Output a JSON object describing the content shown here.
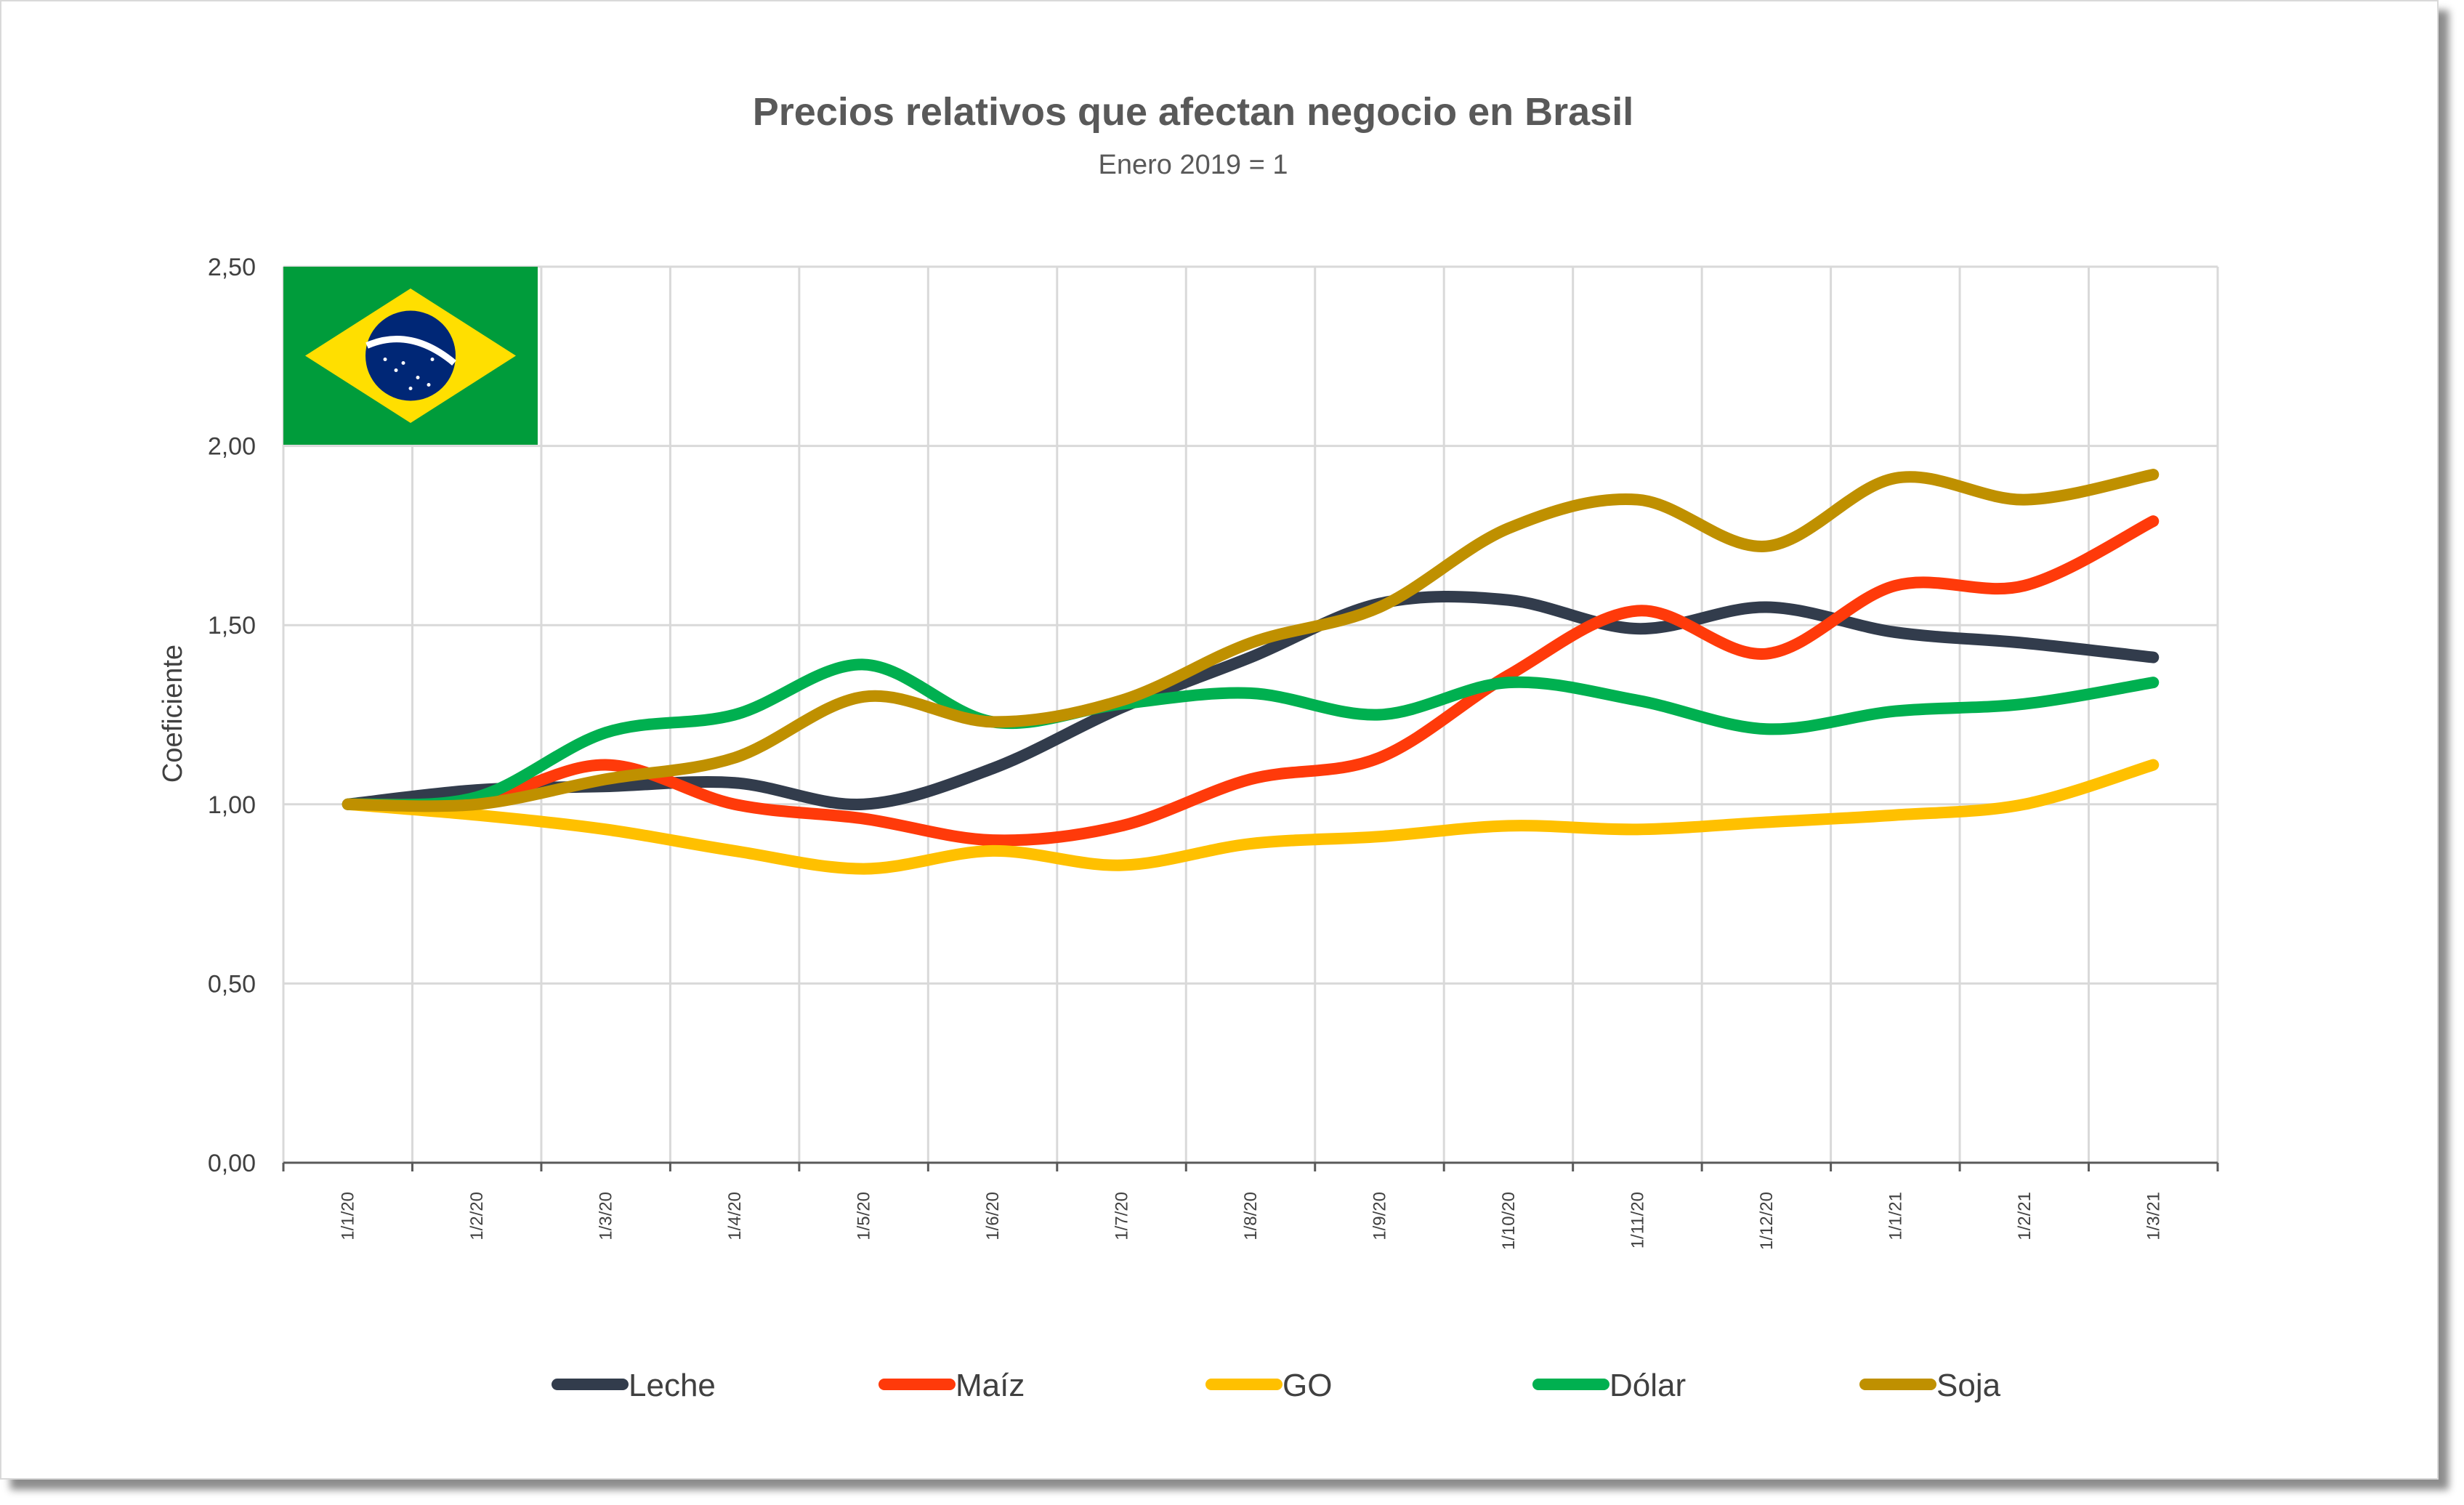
{
  "chart_data": {
    "type": "line",
    "title": "Precios relativos que afectan negocio en Brasil",
    "subtitle": "Enero 2019 = 1",
    "ylabel": "Coeficiente",
    "xlabel": "",
    "ylim": [
      0,
      2.5
    ],
    "yticks": [
      "0,00",
      "0,50",
      "1,00",
      "1,50",
      "2,00",
      "2,50"
    ],
    "ytick_values": [
      0,
      0.5,
      1.0,
      1.5,
      2.0,
      2.5
    ],
    "x": [
      "1/1/20",
      "1/2/20",
      "1/3/20",
      "1/4/20",
      "1/5/20",
      "1/6/20",
      "1/7/20",
      "1/8/20",
      "1/9/20",
      "1/10/20",
      "1/11/20",
      "1/12/20",
      "1/1/21",
      "1/2/21",
      "1/3/21"
    ],
    "grid": true,
    "legend_position": "bottom",
    "series": [
      {
        "name": "Leche",
        "color": "#323c4c",
        "values": [
          1.0,
          1.04,
          1.05,
          1.06,
          1.0,
          1.1,
          1.27,
          1.41,
          1.56,
          1.57,
          1.49,
          1.55,
          1.48,
          1.45,
          1.41
        ]
      },
      {
        "name": "Maíz",
        "color": "#ff3a0a",
        "values": [
          1.0,
          1.01,
          1.11,
          1.0,
          0.96,
          0.9,
          0.94,
          1.07,
          1.13,
          1.36,
          1.54,
          1.42,
          1.61,
          1.61,
          1.79
        ]
      },
      {
        "name": "GO",
        "color": "#ffc000",
        "values": [
          1.0,
          0.97,
          0.93,
          0.87,
          0.82,
          0.87,
          0.83,
          0.89,
          0.91,
          0.94,
          0.93,
          0.95,
          0.97,
          1.0,
          1.11
        ]
      },
      {
        "name": "Dólar",
        "color": "#00b050",
        "values": [
          1.0,
          1.02,
          1.2,
          1.25,
          1.39,
          1.23,
          1.28,
          1.31,
          1.25,
          1.34,
          1.29,
          1.21,
          1.26,
          1.28,
          1.34
        ]
      },
      {
        "name": "Soja",
        "color": "#bf9000",
        "values": [
          1.0,
          1.0,
          1.07,
          1.13,
          1.3,
          1.23,
          1.29,
          1.45,
          1.55,
          1.77,
          1.85,
          1.72,
          1.91,
          1.85,
          1.92
        ]
      }
    ]
  },
  "flag": {
    "green": "#009c3b",
    "yellow": "#ffdf00",
    "blue": "#002776",
    "band": "#ffffff"
  }
}
